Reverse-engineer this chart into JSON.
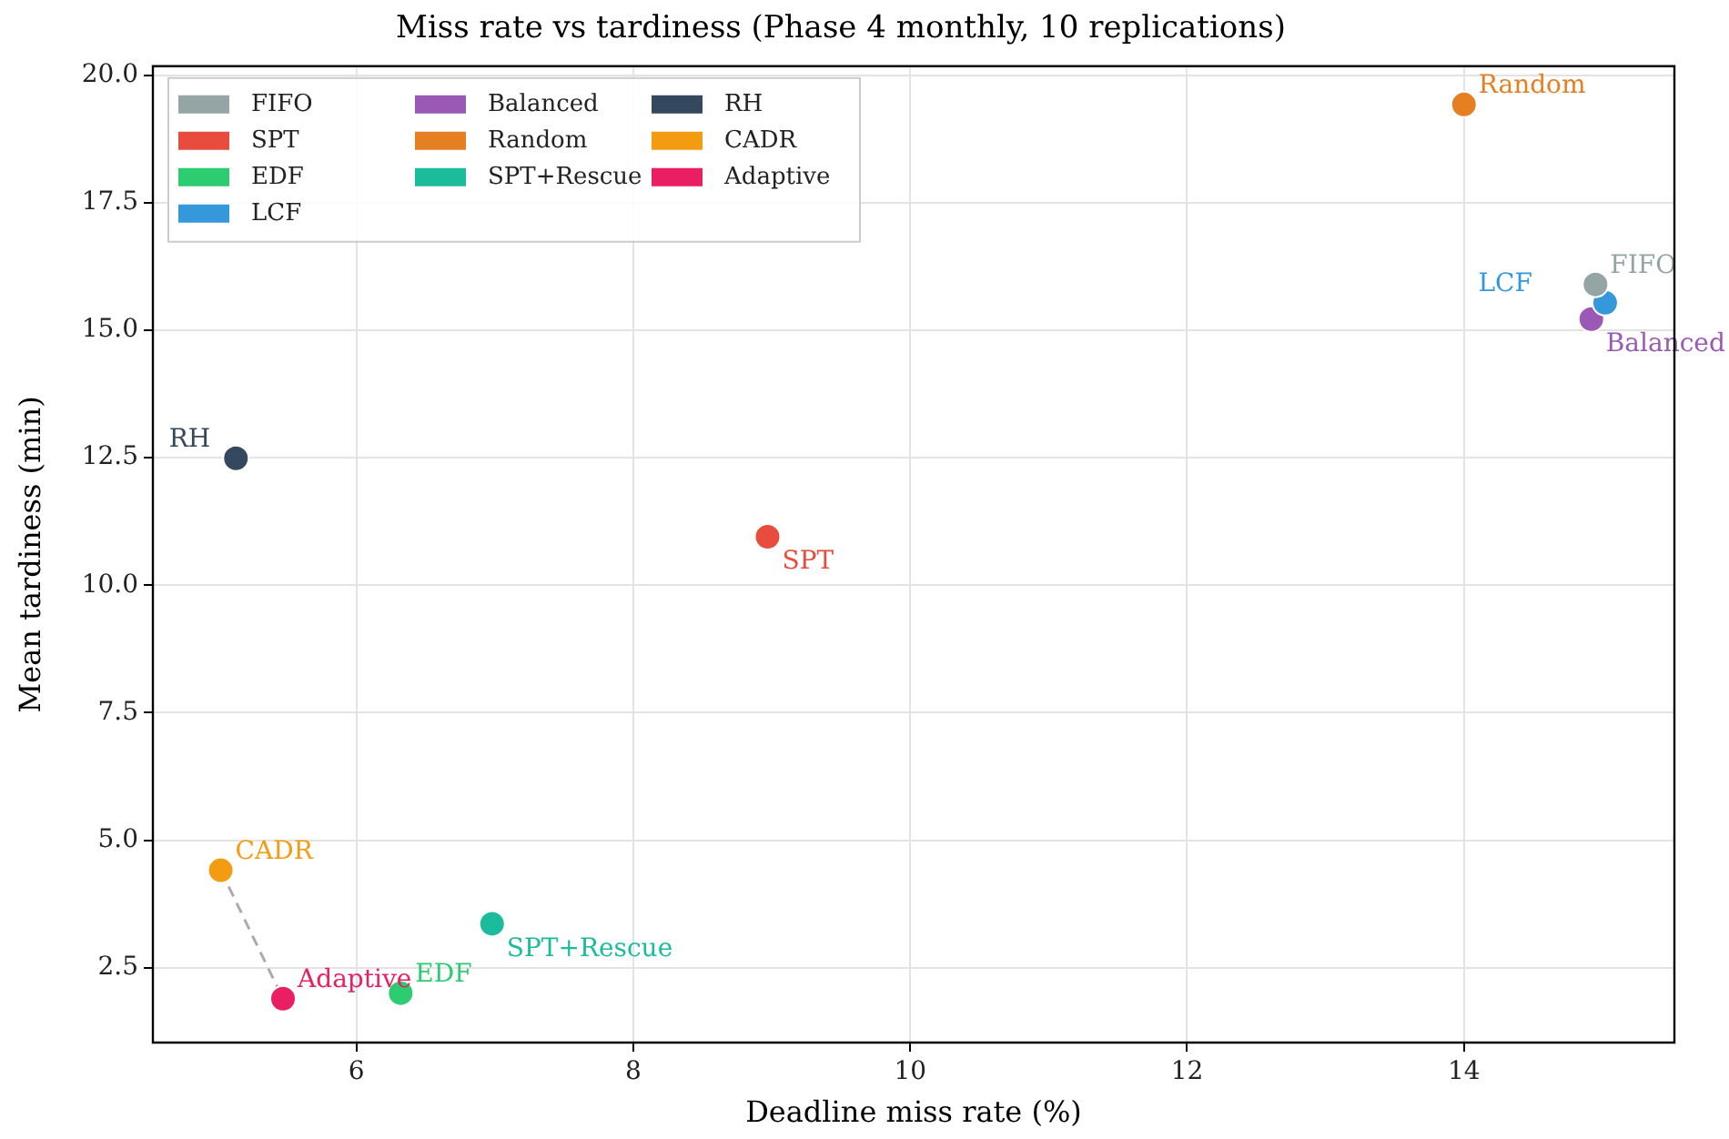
{
  "chart_data": {
    "type": "scatter",
    "title": "Miss rate vs tardiness (Phase 4 monthly, 10 replications)",
    "xlabel": "Deadline miss rate (%)",
    "ylabel": "Mean tardiness (min)",
    "xlim": [
      4.53,
      15.52
    ],
    "xticks": [
      6,
      8,
      10,
      12,
      14
    ],
    "ylim": [
      1.03,
      20.18
    ],
    "yticks": [
      {
        "value": 2.5,
        "label": "2.5"
      },
      {
        "value": 5,
        "label": "5.0"
      },
      {
        "value": 7.5,
        "label": "7.5"
      },
      {
        "value": 10,
        "label": "10.0"
      },
      {
        "value": 12.5,
        "label": "12.5"
      },
      {
        "value": 15,
        "label": "15.0"
      },
      {
        "value": 17.5,
        "label": "17.5"
      },
      {
        "value": 20,
        "label": "20.0"
      }
    ],
    "grid": true,
    "legend": "top left",
    "marker": "circle",
    "series": [
      {
        "type": "line",
        "color": "#aaaaaa",
        "line_style": "dashed",
        "marker": "none",
        "x": [
          5.02,
          5.47
        ],
        "values": [
          4.41,
          1.89
        ]
      },
      {
        "name": "FIFO",
        "color": "#95a5a6",
        "x": [
          14.95
        ],
        "values": [
          15.9
        ]
      },
      {
        "name": "SPT",
        "color": "#e74c3c",
        "x": [
          8.97
        ],
        "values": [
          10.95
        ]
      },
      {
        "name": "EDF",
        "color": "#2ecc71",
        "x": [
          6.32
        ],
        "values": [
          2.0
        ]
      },
      {
        "name": "LCF",
        "color": "#3498db",
        "x": [
          15.02
        ],
        "values": [
          15.54
        ]
      },
      {
        "name": "Balanced",
        "color": "#9b59b6",
        "x": [
          14.92
        ],
        "values": [
          15.22
        ]
      },
      {
        "name": "Random",
        "color": "#e67e22",
        "x": [
          14.0
        ],
        "values": [
          19.43
        ]
      },
      {
        "name": "SPT+Rescue",
        "color": "#1abc9c",
        "x": [
          6.98
        ],
        "values": [
          3.36
        ]
      },
      {
        "name": "RH",
        "color": "#34495e",
        "x": [
          5.13
        ],
        "values": [
          12.49
        ]
      },
      {
        "name": "CADR",
        "color": "#f39c12",
        "x": [
          5.02
        ],
        "values": [
          4.41
        ]
      },
      {
        "name": "Adaptive",
        "color": "#e91e63",
        "x": [
          5.47
        ],
        "values": [
          1.89
        ]
      }
    ]
  }
}
